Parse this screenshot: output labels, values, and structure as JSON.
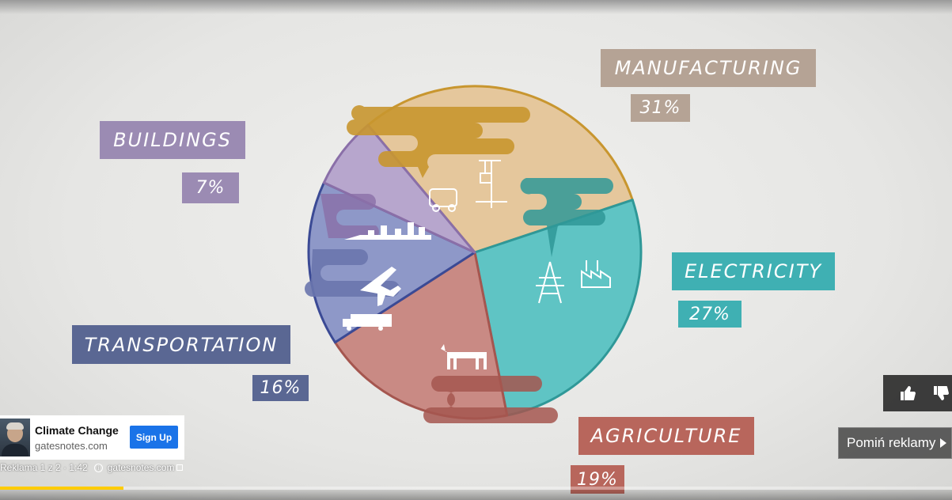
{
  "ad": {
    "title": "Climate Change",
    "domain": "gatesnotes.com",
    "cta_label": "Sign Up",
    "counter": "Reklama 1 z 2 · 1:42",
    "link": "gatesnotes.com",
    "skip_label": "Pomiń reklamy",
    "progress_fraction": 0.13
  },
  "colors": {
    "manufacturing": "#b5a395",
    "electricity": "#3fb0b3",
    "agriculture": "#b8665c",
    "transportation": "#5a6793",
    "buildings": "#9b8bb3",
    "manufacturing_pie": "#e5c79c",
    "electricity_pie": "#5fc4c4",
    "agriculture_pie": "#c98a84",
    "transportation_pie": "#8e98c8",
    "buildings_pie": "#b7a6cd",
    "progress": "#ffcc00",
    "cta": "#1a73e8"
  },
  "icons": [
    "crane-icon",
    "mixer-truck-icon",
    "power-tower-icon",
    "factory-icon",
    "cow-icon",
    "airplane-icon",
    "truck-icon",
    "skyline-icon",
    "info-icon",
    "external-link-icon",
    "thumbs-up-icon",
    "thumbs-down-icon",
    "skip-arrow-icon"
  ],
  "chart_data": {
    "type": "pie",
    "labels": [
      "MANUFACTURING",
      "ELECTRICITY",
      "AGRICULTURE",
      "TRANSPORTATION",
      "BUILDINGS"
    ],
    "values": [
      31,
      27,
      19,
      16,
      7
    ],
    "value_labels": [
      "31%",
      "27%",
      "19%",
      "16%",
      "7%"
    ]
  }
}
